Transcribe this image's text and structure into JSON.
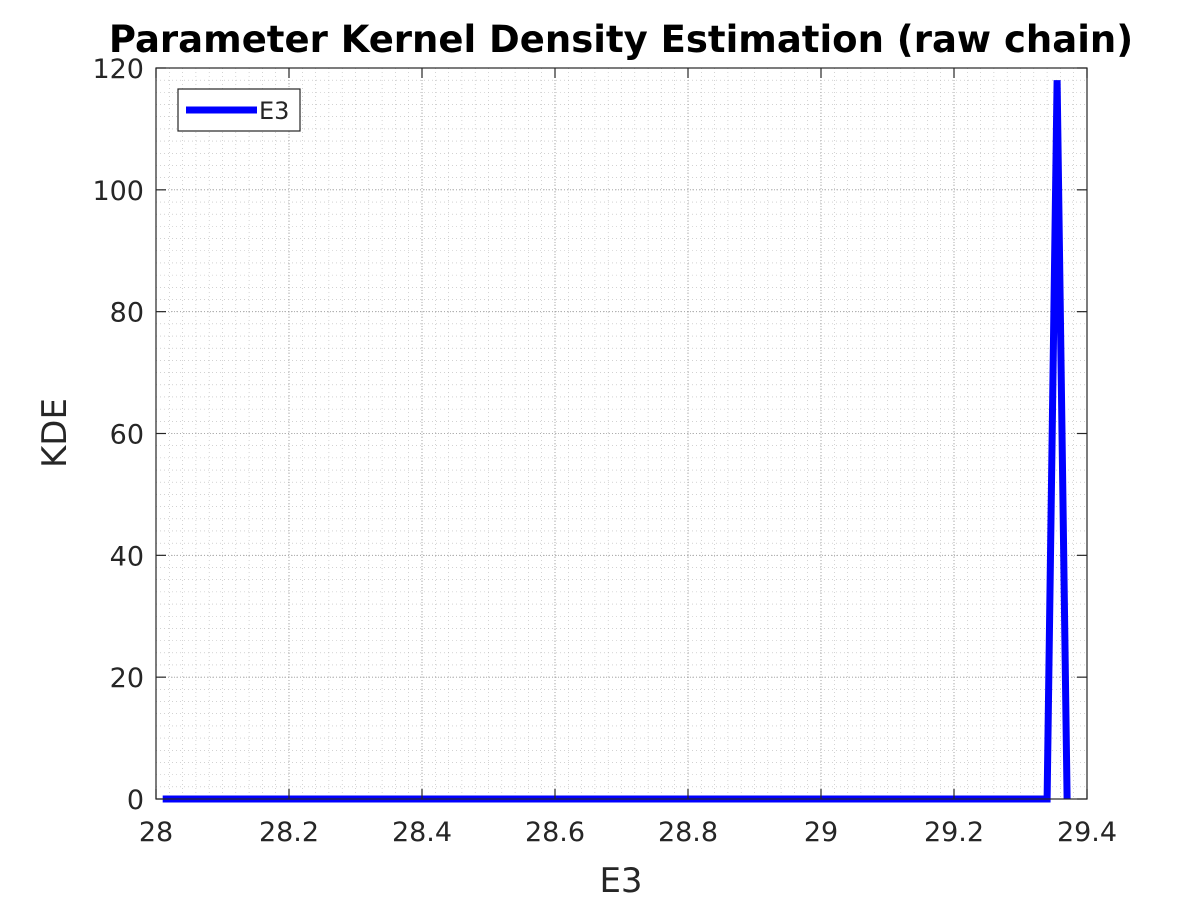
{
  "chart_data": {
    "type": "line",
    "title": "Parameter Kernel Density Estimation (raw chain)",
    "xlabel": "E3",
    "ylabel": "KDE",
    "xlim": [
      28,
      29.4
    ],
    "ylim": [
      0,
      120
    ],
    "xticks": [
      "28",
      "28.2",
      "28.4",
      "28.6",
      "28.8",
      "29",
      "29.2",
      "29.4"
    ],
    "yticks": [
      "0",
      "20",
      "40",
      "60",
      "80",
      "100",
      "120"
    ],
    "grid": true,
    "minor_grid": true,
    "legend_position": "top-left",
    "series": [
      {
        "name": "E3",
        "color": "#0000ff",
        "x": [
          28.01,
          28.5,
          29.0,
          29.34,
          29.355,
          29.37
        ],
        "y": [
          0,
          0,
          0,
          0,
          118,
          0
        ]
      }
    ]
  }
}
